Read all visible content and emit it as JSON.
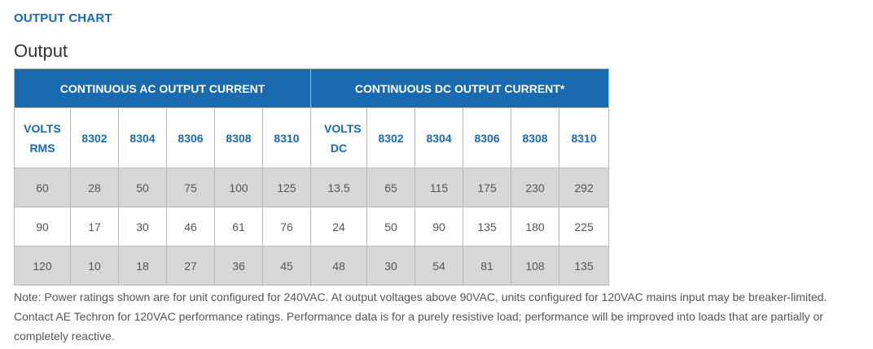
{
  "heading": "OUTPUT CHART",
  "subtitle": "Output",
  "table": {
    "group_headers": [
      "CONTINUOUS AC OUTPUT CURRENT",
      "CONTINUOUS DC OUTPUT CURRENT*"
    ],
    "columns": [
      "VOLTS RMS",
      "8302",
      "8304",
      "8306",
      "8308",
      "8310",
      "VOLTS DC",
      "8302",
      "8304",
      "8306",
      "8308",
      "8310"
    ],
    "rows": [
      [
        "60",
        "28",
        "50",
        "75",
        "100",
        "125",
        "13.5",
        "65",
        "115",
        "175",
        "230",
        "292"
      ],
      [
        "90",
        "17",
        "30",
        "46",
        "61",
        "76",
        "24",
        "50",
        "90",
        "135",
        "180",
        "225"
      ],
      [
        "120",
        "10",
        "18",
        "27",
        "36",
        "45",
        "48",
        "30",
        "54",
        "81",
        "108",
        "135"
      ]
    ]
  },
  "note": "Note: Power ratings shown are for unit configured for 240VAC. At output voltages above 90VAC, units configured for 120VAC mains input may be breaker-limited. Contact AE Techron for 120VAC performance ratings. Performance data is for a purely resistive load; performance will be improved into loads that are partially or completely reactive.",
  "colors": {
    "brand_blue": "#1a6ab0",
    "row_shade": "#d7d7d7",
    "text_gray": "#555555"
  }
}
